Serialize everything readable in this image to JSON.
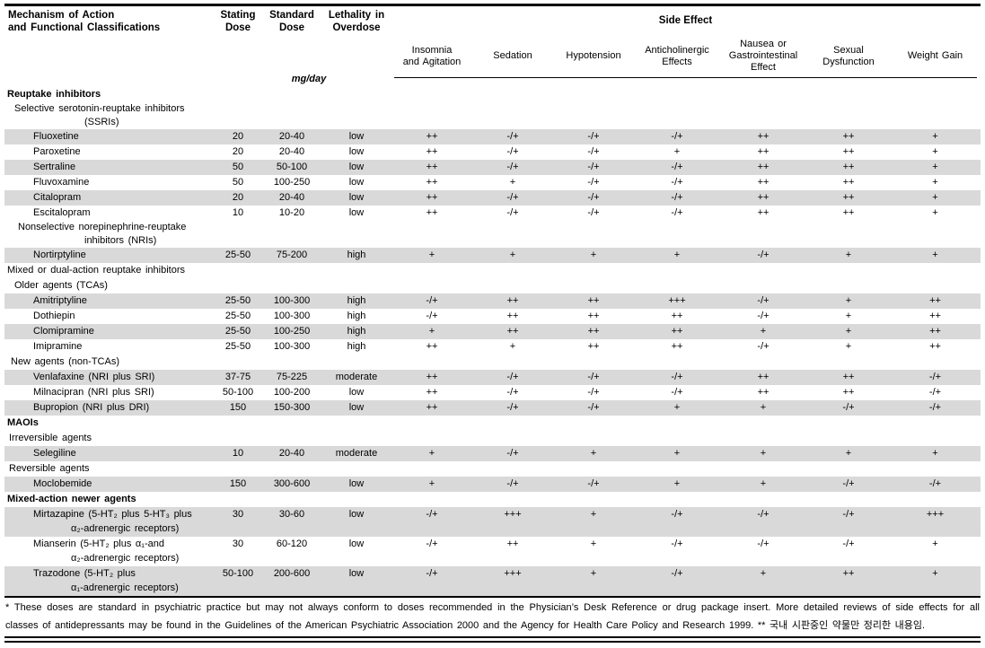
{
  "header": {
    "col1_title": [
      "Mechanism of Action",
      "and Functional Classifications"
    ],
    "stating_dose": [
      "Stating",
      "Dose"
    ],
    "standard_dose": [
      "Standard",
      "Dose"
    ],
    "lethality": [
      "Lethality in",
      "Overdose"
    ],
    "side_effect_group": "Side Effect",
    "unit": "mg/day",
    "effect_columns": [
      [
        "Insomnia",
        "and Agitation"
      ],
      [
        "Sedation"
      ],
      [
        "Hypotension"
      ],
      [
        "Anticholinergic",
        "Effects"
      ],
      [
        "Nausea or",
        "Gastrointestinal",
        "Effect"
      ],
      [
        "Sexual",
        "Dysfunction"
      ],
      [
        "Weight Gain"
      ]
    ]
  },
  "rows": [
    {
      "type": "section",
      "label": "Reuptake inhibitors"
    },
    {
      "type": "sub",
      "lines": [
        {
          "text": "Selective serotonin-reuptake inhibitors",
          "indent": 11
        },
        {
          "text": "(SSRIs)",
          "indent": 89
        }
      ]
    },
    {
      "type": "drug",
      "shaded": true,
      "name": [
        "Fluoxetine"
      ],
      "stating": "20",
      "standard": "20-40",
      "lethality": "low",
      "effects": [
        "++",
        "-/+",
        "-/+",
        "-/+",
        "++",
        "++",
        "+"
      ]
    },
    {
      "type": "drug",
      "shaded": false,
      "name": [
        "Paroxetine"
      ],
      "stating": "20",
      "standard": "20-40",
      "lethality": "low",
      "effects": [
        "++",
        "-/+",
        "-/+",
        "+",
        "++",
        "++",
        "+"
      ]
    },
    {
      "type": "drug",
      "shaded": true,
      "name": [
        "Sertraline"
      ],
      "stating": "50",
      "standard": "50-100",
      "lethality": "low",
      "effects": [
        "++",
        "-/+",
        "-/+",
        "-/+",
        "++",
        "++",
        "+"
      ]
    },
    {
      "type": "drug",
      "shaded": false,
      "name": [
        "Fluvoxamine"
      ],
      "stating": "50",
      "standard": "100-250",
      "lethality": "low",
      "effects": [
        "++",
        "+",
        "-/+",
        "-/+",
        "++",
        "++",
        "+"
      ]
    },
    {
      "type": "drug",
      "shaded": true,
      "name": [
        "Citalopram"
      ],
      "stating": "20",
      "standard": "20-40",
      "lethality": "low",
      "effects": [
        "++",
        "-/+",
        "-/+",
        "-/+",
        "++",
        "++",
        "+"
      ]
    },
    {
      "type": "drug",
      "shaded": false,
      "name": [
        "Escitalopram"
      ],
      "stating": "10",
      "standard": "10-20",
      "lethality": "low",
      "effects": [
        "++",
        "-/+",
        "-/+",
        "-/+",
        "++",
        "++",
        "+"
      ]
    },
    {
      "type": "sub",
      "lines": [
        {
          "text": "Nonselective norepinephrine-reuptake",
          "indent": 15
        },
        {
          "text": "inhibitors (NRIs)",
          "indent": 89
        }
      ]
    },
    {
      "type": "drug",
      "shaded": true,
      "name": [
        "Nortirptyline"
      ],
      "stating": "25-50",
      "standard": "75-200",
      "lethality": "high",
      "effects": [
        "+",
        "+",
        "+",
        "+",
        "-/+",
        "+",
        "+"
      ]
    },
    {
      "type": "sub",
      "lines": [
        {
          "text": "Mixed or dual-action reuptake inhibitors",
          "indent": 3
        }
      ]
    },
    {
      "type": "sub",
      "lines": [
        {
          "text": "Older agents (TCAs)",
          "indent": 11
        }
      ]
    },
    {
      "type": "drug",
      "shaded": true,
      "name": [
        "Amitriptyline"
      ],
      "stating": "25-50",
      "standard": "100-300",
      "lethality": "high",
      "effects": [
        "-/+",
        "++",
        "++",
        "+++",
        "-/+",
        "+",
        "++"
      ]
    },
    {
      "type": "drug",
      "shaded": false,
      "name": [
        "Dothiepin"
      ],
      "stating": "25-50",
      "standard": "100-300",
      "lethality": "high",
      "effects": [
        "-/+",
        "++",
        "++",
        "++",
        "-/+",
        "+",
        "++"
      ]
    },
    {
      "type": "drug",
      "shaded": true,
      "name": [
        "Clomipramine"
      ],
      "stating": "25-50",
      "standard": "100-250",
      "lethality": "high",
      "effects": [
        "+",
        "++",
        "++",
        "++",
        "+",
        "+",
        "++"
      ]
    },
    {
      "type": "drug",
      "shaded": false,
      "name": [
        "Imipramine"
      ],
      "stating": "25-50",
      "standard": "100-300",
      "lethality": "high",
      "effects": [
        "++",
        "+",
        "++",
        "++",
        "-/+",
        "+",
        "++"
      ]
    },
    {
      "type": "sub",
      "lines": [
        {
          "text": "New agents (non-TCAs)",
          "indent": 7
        }
      ]
    },
    {
      "type": "drug",
      "shaded": true,
      "name": [
        "Venlafaxine (NRI plus SRI)"
      ],
      "stating": "37-75",
      "standard": "75-225",
      "lethality": "moderate",
      "effects": [
        "++",
        "-/+",
        "-/+",
        "-/+",
        "++",
        "++",
        "-/+"
      ]
    },
    {
      "type": "drug",
      "shaded": false,
      "name": [
        "Milnacipran (NRI plus SRI)"
      ],
      "stating": "50-100",
      "standard": "100-200",
      "lethality": "low",
      "effects": [
        "++",
        "-/+",
        "-/+",
        "-/+",
        "++",
        "++",
        "-/+"
      ]
    },
    {
      "type": "drug",
      "shaded": true,
      "name": [
        "Bupropion (NRI plus DRI)"
      ],
      "stating": "150",
      "standard": "150-300",
      "lethality": "low",
      "effects": [
        "++",
        "-/+",
        "-/+",
        "+",
        "+",
        "-/+",
        "-/+"
      ]
    },
    {
      "type": "section",
      "label": "MAOIs"
    },
    {
      "type": "sub",
      "lines": [
        {
          "text": "Irreversible agents",
          "indent": 5
        }
      ]
    },
    {
      "type": "drug",
      "shaded": true,
      "name": [
        "Selegiline"
      ],
      "stating": "10",
      "standard": "20-40",
      "lethality": "moderate",
      "effects": [
        "+",
        "-/+",
        "+",
        "+",
        "+",
        "+",
        "+"
      ]
    },
    {
      "type": "sub",
      "lines": [
        {
          "text": "Reversible agents",
          "indent": 5
        }
      ]
    },
    {
      "type": "drug",
      "shaded": true,
      "name": [
        "Moclobemide"
      ],
      "stating": "150",
      "standard": "300-600",
      "lethality": "low",
      "effects": [
        "+",
        "-/+",
        "-/+",
        "+",
        "+",
        "-/+",
        "-/+"
      ]
    },
    {
      "type": "section",
      "label": "Mixed-action newer agents"
    },
    {
      "type": "drug",
      "shaded": true,
      "name": [
        "Mirtazapine (5-HT₂ plus 5-HT₃ plus",
        "α₂-adrenergic receptors)"
      ],
      "stating": "30",
      "standard": "30-60",
      "lethality": "low",
      "effects": [
        "-/+",
        "+++",
        "+",
        "-/+",
        "-/+",
        "-/+",
        "+++"
      ]
    },
    {
      "type": "drug",
      "shaded": false,
      "name": [
        "Mianserin (5-HT₂ plus α₁-and",
        "α₂-adrenergic receptors)"
      ],
      "stating": "30",
      "standard": "60-120",
      "lethality": "low",
      "effects": [
        "-/+",
        "++",
        "+",
        "-/+",
        "-/+",
        "-/+",
        "+"
      ]
    },
    {
      "type": "drug",
      "shaded": true,
      "name": [
        "Trazodone (5-HT₂ plus",
        "α₁-adrenergic receptors)"
      ],
      "stating": "50-100",
      "standard": "200-600",
      "lethality": "low",
      "effects": [
        "-/+",
        "+++",
        "+",
        "-/+",
        "+",
        "++",
        "+"
      ]
    }
  ],
  "footnote": "* These doses are standard in psychiatric practice but may not always conform to doses recommended in the Physician’s Desk Reference or drug package insert. More detailed reviews of side effects for all classes of antidepressants may be found in the Guidelines of the American Psychiatric Association 2000 and the Agency for Health Care Policy and Research 1999. ** 국내 시판중인 약물만 정리한 내용임.",
  "colors": {
    "row_shade": "#d9d9d9",
    "rule": "#000000"
  }
}
